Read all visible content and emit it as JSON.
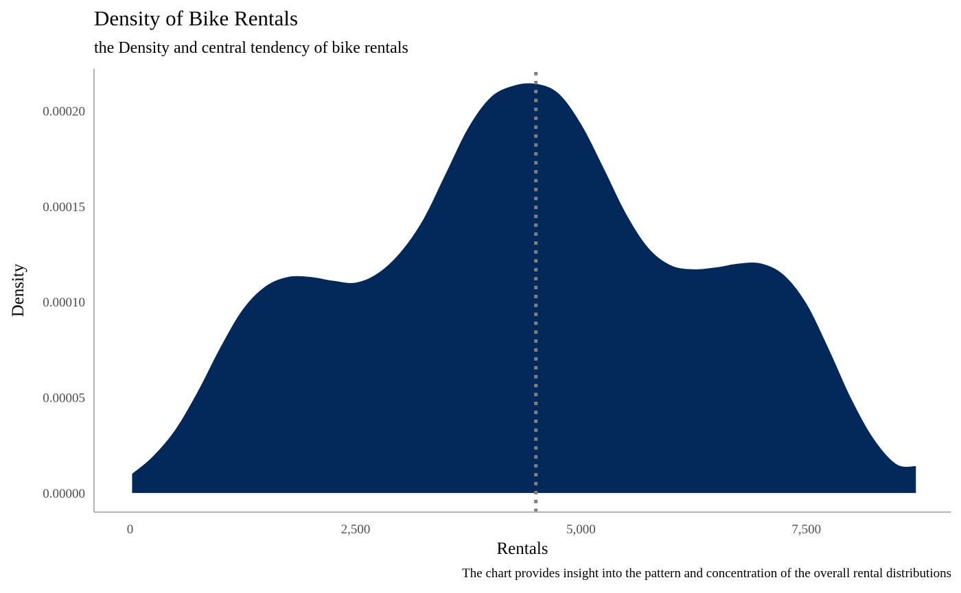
{
  "colors": {
    "fill": "#03285a",
    "median_line": "#7f7f7f",
    "axis_line": "#b3b3b3",
    "tick_text": "#4d4d4d"
  },
  "chart_data": {
    "type": "area",
    "title": "Density of Bike Rentals",
    "subtitle": "the Density and central tendency of bike rentals",
    "caption": "The chart provides insight into the pattern and concentration of the overall rental distributions",
    "xlabel": "Rentals",
    "ylabel": "Density",
    "xlim": [
      -400,
      9100
    ],
    "ylim": [
      -1e-05,
      0.000222
    ],
    "x_ticks": [
      {
        "value": 0,
        "label": "0"
      },
      {
        "value": 2500,
        "label": "2,500"
      },
      {
        "value": 5000,
        "label": "5,000"
      },
      {
        "value": 7500,
        "label": "7,500"
      }
    ],
    "y_ticks": [
      {
        "value": 0,
        "label": "0.00000"
      },
      {
        "value": 5e-05,
        "label": "0.00005"
      },
      {
        "value": 0.0001,
        "label": "0.00010"
      },
      {
        "value": 0.00015,
        "label": "0.00015"
      },
      {
        "value": 0.0002,
        "label": "0.00020"
      }
    ],
    "grid": false,
    "reference_line": {
      "style": "dotted",
      "x": 4500
    },
    "series": [
      {
        "x": [
          22,
          250,
          500,
          750,
          1000,
          1250,
          1500,
          1750,
          2000,
          2250,
          2500,
          2750,
          3000,
          3250,
          3500,
          3750,
          4000,
          4250,
          4500,
          4750,
          5000,
          5250,
          5500,
          5750,
          6000,
          6250,
          6500,
          6750,
          7000,
          7250,
          7500,
          7750,
          8000,
          8250,
          8500,
          8714
        ],
        "y": [
          1e-05,
          1.9e-05,
          3.3e-05,
          5.3e-05,
          7.6e-05,
          9.6e-05,
          0.000108,
          0.000113,
          0.000113,
          0.000111,
          0.00011,
          0.000115,
          0.000126,
          0.000143,
          0.000167,
          0.000191,
          0.000207,
          0.000213,
          0.000214,
          0.000209,
          0.000193,
          0.00017,
          0.000146,
          0.000128,
          0.000119,
          0.000117,
          0.000118,
          0.00012,
          0.00012,
          0.000114,
          9.9e-05,
          7.5e-05,
          4.9e-05,
          2.8e-05,
          1.5e-05,
          1.4e-05
        ]
      }
    ]
  }
}
